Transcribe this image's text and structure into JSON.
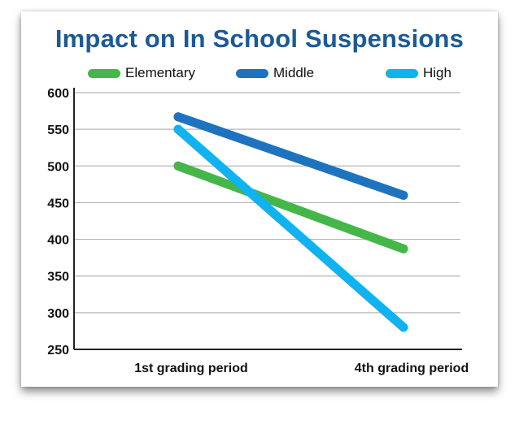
{
  "chart_data": {
    "type": "line",
    "title": "Impact on In School Suspensions",
    "categories": [
      "1st grading period",
      "4th grading period"
    ],
    "series": [
      {
        "name": "Elementary",
        "values": [
          500,
          387
        ],
        "color": "#45b649"
      },
      {
        "name": "Middle",
        "values": [
          567,
          460
        ],
        "color": "#1e73be"
      },
      {
        "name": "High",
        "values": [
          550,
          280
        ],
        "color": "#10b2ef"
      }
    ],
    "yticks": [
      600,
      550,
      500,
      450,
      400,
      350,
      300,
      250
    ],
    "ylim": [
      250,
      600
    ],
    "grid": true,
    "legend_position": "top"
  }
}
